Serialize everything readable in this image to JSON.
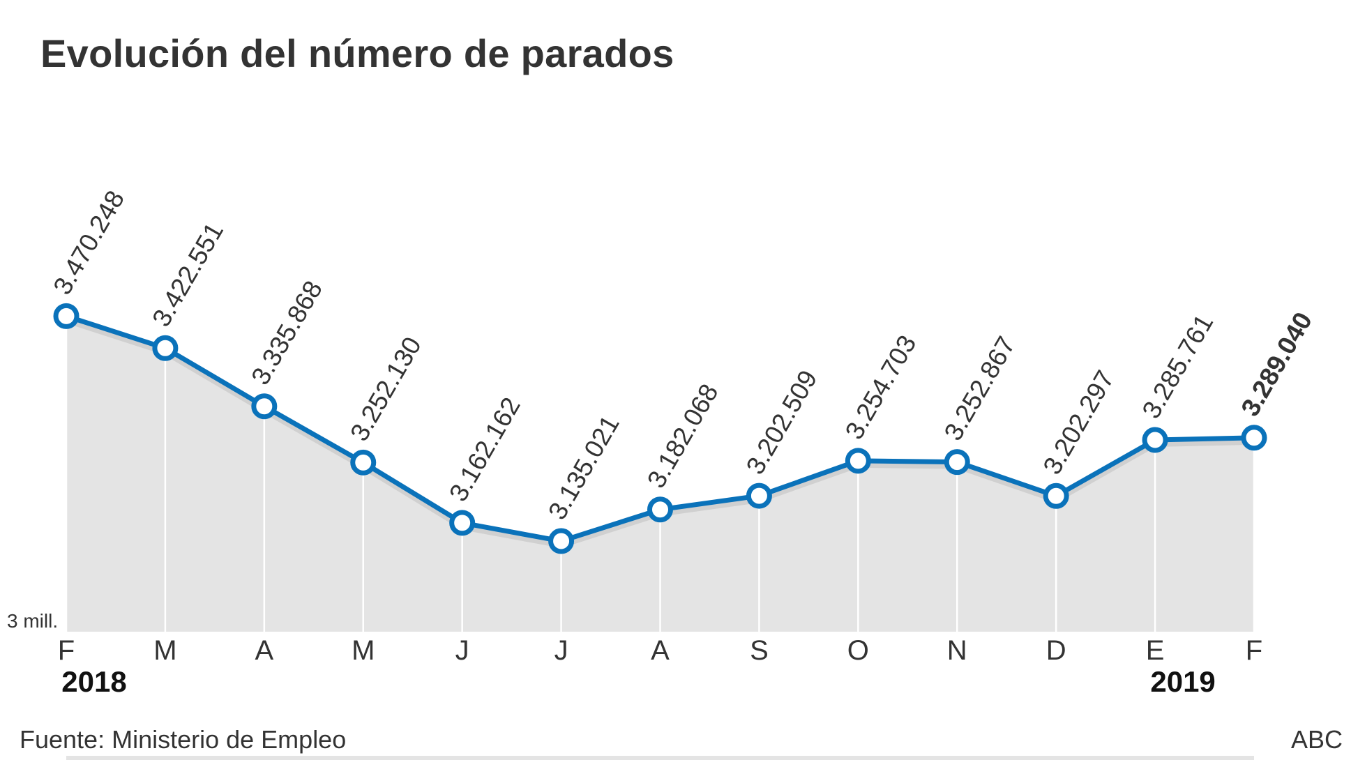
{
  "chart_data": {
    "type": "line",
    "title": "Evolución del número de parados",
    "categories": [
      "F",
      "M",
      "A",
      "M",
      "J",
      "J",
      "A",
      "S",
      "O",
      "N",
      "D",
      "E",
      "F"
    ],
    "series": [
      {
        "values": [
          3470248,
          3422551,
          3335868,
          3252130,
          3162162,
          3135021,
          3182068,
          3202509,
          3254703,
          3252867,
          3202297,
          3285761,
          3289040
        ]
      }
    ],
    "data_labels": [
      "3.470.248",
      "3.422.551",
      "3.335.868",
      "3.252.130",
      "3.162.162",
      "3.135.021",
      "3.182.068",
      "3.202.509",
      "3.254.703",
      "3.252.867",
      "3.202.297",
      "3.285.761",
      "3.289.040"
    ],
    "year_labels": [
      {
        "index": 0,
        "text": "2018"
      },
      {
        "index": 11,
        "text": "2019"
      }
    ],
    "baseline_label": "3 mill.",
    "ylim": [
      3000000,
      3480000
    ],
    "grid": "vertical",
    "colors": {
      "line": "#0a72ba",
      "area": "#e4e4e4",
      "grid": "#ffffff",
      "text": "#333333"
    }
  },
  "footer": {
    "source": "Fuente: Ministerio de Empleo",
    "credit": "ABC"
  }
}
